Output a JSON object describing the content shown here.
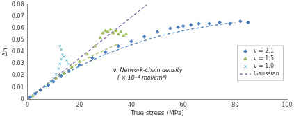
{
  "chart_data": {
    "type": "scatter",
    "x_label": "True stress (MPa)",
    "y_label": "Δn",
    "annotations": [
      "ν: Network-chain density",
      "( × 10⁻⁴ mol/cm³)"
    ],
    "xlim": [
      0,
      100
    ],
    "xticks": [
      0,
      20,
      40,
      60,
      80,
      100
    ],
    "ylim": [
      0,
      0.08
    ],
    "yticks": [
      0,
      0.01,
      0.02,
      0.03,
      0.04,
      0.05,
      0.06,
      0.07,
      0.08
    ],
    "grid": false,
    "legend": "right",
    "series": [
      {
        "name": "ν = 2.1",
        "color": "#4a7ebb",
        "marker": "diamond",
        "x": [
          1,
          3,
          5,
          8,
          10,
          13,
          16,
          20,
          25,
          30,
          35,
          40,
          45,
          50,
          55,
          58,
          60,
          63,
          66,
          70,
          74,
          78,
          82,
          85
        ],
        "values": [
          0.002,
          0.005,
          0.008,
          0.012,
          0.015,
          0.02,
          0.024,
          0.029,
          0.035,
          0.04,
          0.045,
          0.049,
          0.053,
          0.057,
          0.06,
          0.061,
          0.062,
          0.063,
          0.064,
          0.064,
          0.065,
          0.064,
          0.066,
          0.065
        ]
      },
      {
        "name": "ν = 1.5",
        "color": "#9bbb59",
        "marker": "triangle",
        "x": [
          2,
          5,
          8,
          11,
          14,
          17,
          20,
          23,
          26,
          28,
          29,
          30,
          31,
          32,
          33,
          34,
          35,
          36,
          37,
          38
        ],
        "values": [
          0.003,
          0.008,
          0.013,
          0.018,
          0.022,
          0.027,
          0.032,
          0.038,
          0.045,
          0.052,
          0.056,
          0.058,
          0.057,
          0.059,
          0.056,
          0.058,
          0.055,
          0.057,
          0.054,
          0.055
        ]
      },
      {
        "name": "ν = 1.0",
        "color": "#4bacc6",
        "marker": "x",
        "x": [
          1,
          3,
          5,
          7,
          9,
          10,
          11,
          12,
          12.5,
          13,
          13.5,
          13,
          12.5,
          14,
          15,
          15.5
        ],
        "values": [
          0.002,
          0.005,
          0.008,
          0.011,
          0.015,
          0.018,
          0.021,
          0.026,
          0.03,
          0.034,
          0.038,
          0.042,
          0.045,
          0.036,
          0.033,
          0.03
        ]
      },
      {
        "name": "Gaussian",
        "color": "#8064a2",
        "type": "line",
        "line_style": "dashed",
        "x": [
          0,
          46
        ],
        "values": [
          0,
          0.08
        ]
      },
      {
        "color": "#9bbb59",
        "type": "line",
        "line_style": "dashed",
        "x": [
          0,
          5,
          10,
          15,
          20,
          25,
          30,
          35
        ],
        "values": [
          0,
          0.009,
          0.017,
          0.024,
          0.031,
          0.037,
          0.042,
          0.047
        ]
      },
      {
        "color": "#4a7ebb",
        "type": "line",
        "line_style": "dashed",
        "x": [
          0,
          10,
          20,
          30,
          40,
          50,
          60,
          70,
          80
        ],
        "values": [
          0,
          0.016,
          0.028,
          0.038,
          0.046,
          0.053,
          0.058,
          0.062,
          0.065
        ]
      }
    ]
  }
}
